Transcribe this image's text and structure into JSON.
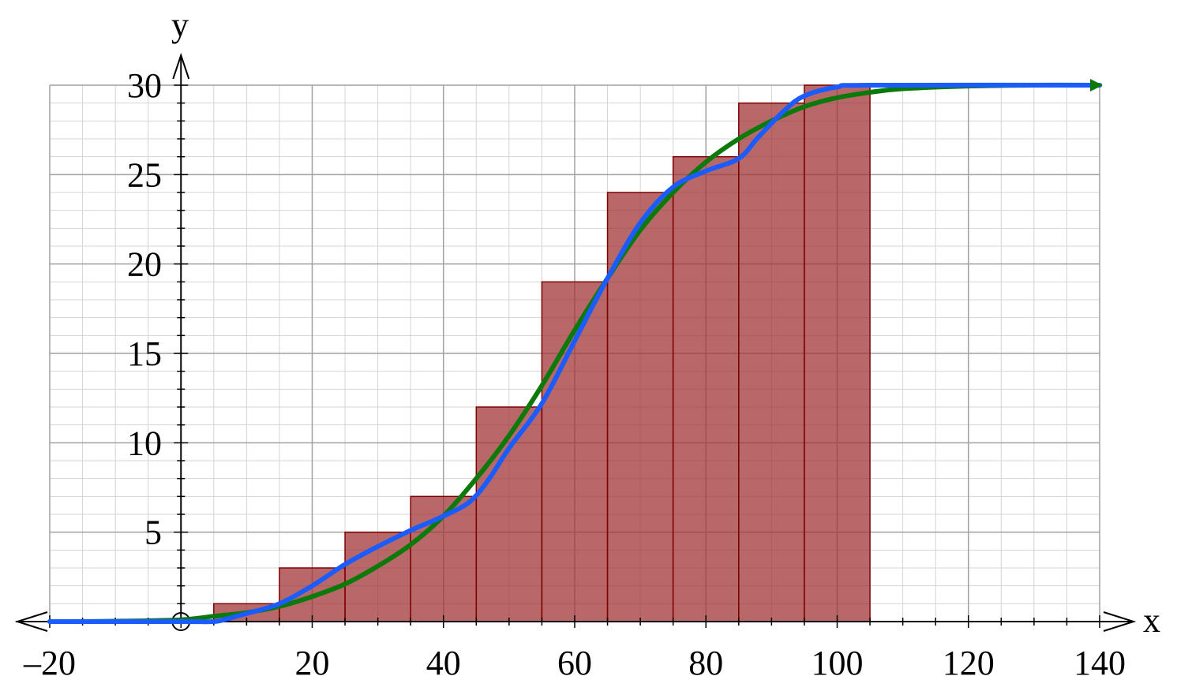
{
  "chart_data": {
    "type": "bar",
    "title": "",
    "xlabel": "x",
    "ylabel": "y",
    "xlim": [
      -20,
      140
    ],
    "ylim": [
      0,
      30
    ],
    "grid": true,
    "x_ticks": [
      {
        "value": -20,
        "label": "–20"
      },
      {
        "value": 20,
        "label": "20"
      },
      {
        "value": 40,
        "label": "40"
      },
      {
        "value": 60,
        "label": "60"
      },
      {
        "value": 80,
        "label": "80"
      },
      {
        "value": 100,
        "label": "100"
      },
      {
        "value": 120,
        "label": "120"
      },
      {
        "value": 140,
        "label": "140"
      }
    ],
    "y_ticks": [
      {
        "value": 5,
        "label": "5"
      },
      {
        "value": 10,
        "label": "10"
      },
      {
        "value": 15,
        "label": "15"
      },
      {
        "value": 20,
        "label": "20"
      },
      {
        "value": 25,
        "label": "25"
      },
      {
        "value": 30,
        "label": "30"
      }
    ],
    "bars": [
      {
        "x0": 5,
        "x1": 15,
        "value": 1
      },
      {
        "x0": 15,
        "x1": 25,
        "value": 3
      },
      {
        "x0": 25,
        "x1": 35,
        "value": 5
      },
      {
        "x0": 35,
        "x1": 45,
        "value": 7
      },
      {
        "x0": 45,
        "x1": 55,
        "value": 12
      },
      {
        "x0": 55,
        "x1": 65,
        "value": 19
      },
      {
        "x0": 65,
        "x1": 75,
        "value": 24
      },
      {
        "x0": 75,
        "x1": 85,
        "value": 26
      },
      {
        "x0": 85,
        "x1": 95,
        "value": 29
      },
      {
        "x0": 95,
        "x1": 105,
        "value": 30
      }
    ],
    "series": [
      {
        "color": "#0b7a0b",
        "points": [
          [
            -20,
            0
          ],
          [
            -10,
            0.02
          ],
          [
            0,
            0.1
          ],
          [
            5,
            0.3
          ],
          [
            10,
            0.5
          ],
          [
            15,
            0.85
          ],
          [
            20,
            1.4
          ],
          [
            25,
            2.1
          ],
          [
            30,
            3.1
          ],
          [
            35,
            4.3
          ],
          [
            40,
            5.9
          ],
          [
            45,
            8.0
          ],
          [
            50,
            10.4
          ],
          [
            55,
            13.2
          ],
          [
            60,
            16.3
          ],
          [
            65,
            19.2
          ],
          [
            70,
            21.9
          ],
          [
            75,
            24.0
          ],
          [
            80,
            25.7
          ],
          [
            85,
            27.0
          ],
          [
            90,
            28.0
          ],
          [
            95,
            28.8
          ],
          [
            100,
            29.3
          ],
          [
            105,
            29.6
          ],
          [
            110,
            29.8
          ],
          [
            120,
            29.95
          ],
          [
            130,
            30
          ],
          [
            140,
            30
          ]
        ]
      },
      {
        "color": "#1a5cff",
        "points": [
          [
            -20,
            0
          ],
          [
            0,
            0
          ],
          [
            5,
            0
          ],
          [
            7,
            0.15
          ],
          [
            10,
            0.45
          ],
          [
            15,
            1.0
          ],
          [
            20,
            2.0
          ],
          [
            25,
            3.2
          ],
          [
            30,
            4.2
          ],
          [
            35,
            5.1
          ],
          [
            40,
            5.9
          ],
          [
            44,
            6.7
          ],
          [
            47,
            8.0
          ],
          [
            50,
            9.7
          ],
          [
            55,
            12.2
          ],
          [
            60,
            15.7
          ],
          [
            65,
            19.2
          ],
          [
            70,
            22.3
          ],
          [
            75,
            24.3
          ],
          [
            80,
            25.2
          ],
          [
            85,
            25.9
          ],
          [
            88,
            27.1
          ],
          [
            92,
            28.6
          ],
          [
            95,
            29.4
          ],
          [
            100,
            29.9
          ],
          [
            105,
            30
          ],
          [
            140,
            30
          ]
        ]
      }
    ],
    "colors": {
      "bar_fill": "#a03535",
      "bar_stroke": "#800000",
      "grid_major": "#a0a0a0",
      "grid_minor": "#d4d4d4"
    }
  }
}
